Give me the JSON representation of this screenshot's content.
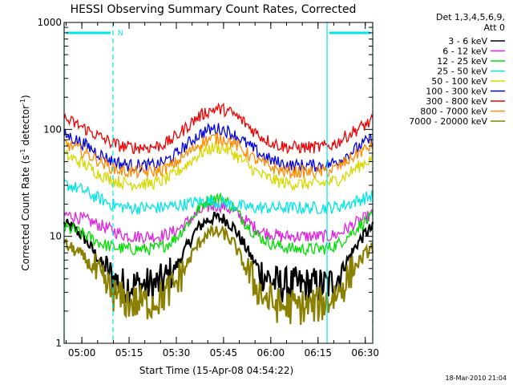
{
  "chart_data": {
    "type": "line",
    "title": "HESSI Observing Summary Count Rates, Corrected",
    "xlabel": "Start Time (15-Apr-08 04:54:22)",
    "ylabel_main": "Corrected Count Rate (s",
    "ylabel_exp1": "-1",
    "ylabel_mid": " detector",
    "ylabel_exp2": "-1",
    "ylabel_end": ")",
    "yscale": "log",
    "ylim": [
      1,
      1000
    ],
    "xlim_minutes": [
      0,
      98
    ],
    "x_tick_labels": [
      "05:00",
      "05:15",
      "05:30",
      "05:45",
      "06:00",
      "06:15",
      "06:30"
    ],
    "y_tick_labels": [
      "1",
      "10",
      "100",
      "1000"
    ],
    "legend_header": [
      "Det 1,3,4,5,6,9,",
      "Att 0"
    ],
    "markers": {
      "night_label": "N",
      "bars": [
        {
          "x1_min": 0,
          "x2_min": 15.5
        },
        {
          "x1_min": 83.5,
          "x2_min": 98
        }
      ],
      "vlines_dashed": [
        15.5,
        98
      ],
      "vlines_solid": [
        0,
        83.5
      ]
    },
    "x_minutes": [
      0,
      3,
      6,
      9,
      12,
      15,
      18,
      21,
      24,
      27,
      30,
      33,
      36,
      39,
      42,
      45,
      48,
      51,
      54,
      57,
      60,
      63,
      66,
      69,
      72,
      75,
      78,
      81,
      84,
      87,
      90,
      93,
      96,
      98
    ],
    "series": [
      {
        "name": "3 - 6 keV",
        "color": "#000000",
        "values": [
          13,
          12,
          10,
          7.5,
          5.5,
          4.2,
          3.5,
          3.5,
          3.5,
          3.5,
          3.6,
          4.2,
          5.5,
          8,
          11.5,
          14,
          15,
          14.5,
          12,
          8.5,
          6,
          4.5,
          3.8,
          3.5,
          3.5,
          3.5,
          3.5,
          3.5,
          3.5,
          4.2,
          6,
          8.5,
          11,
          12
        ]
      },
      {
        "name": "6 - 12 keV",
        "color": "#e020e0",
        "values": [
          16,
          15.5,
          14.5,
          13.5,
          12.5,
          11.5,
          10.5,
          10,
          10,
          10,
          10,
          10.5,
          11.5,
          13.5,
          16,
          18.5,
          19.5,
          19,
          17,
          14.5,
          12.5,
          11,
          10.5,
          10,
          10,
          10,
          10,
          10,
          10,
          10.5,
          12,
          13.5,
          15,
          16
        ]
      },
      {
        "name": "12 - 25 keV",
        "color": "#00dd00",
        "values": [
          12,
          11.5,
          10.5,
          9.5,
          8.5,
          8,
          7.7,
          7.6,
          7.6,
          7.6,
          7.8,
          8.5,
          10,
          13,
          17,
          21,
          23,
          22,
          18.5,
          14,
          11,
          9.5,
          8.5,
          8,
          7.7,
          7.6,
          7.6,
          7.6,
          7.8,
          8.5,
          10,
          12,
          14,
          15
        ]
      },
      {
        "name": "25 - 50 keV",
        "color": "#00e5e5",
        "values": [
          31,
          29,
          27,
          24,
          22,
          20,
          19,
          18.5,
          18.5,
          18.5,
          18.5,
          19,
          19.5,
          20,
          21,
          21.5,
          21,
          20.5,
          19.5,
          19,
          18.5,
          18.5,
          18.5,
          18.5,
          18.5,
          18.5,
          18.5,
          18.5,
          18.5,
          19,
          20,
          21.5,
          23,
          24
        ]
      },
      {
        "name": "50 - 100 keV",
        "color": "#d8d800",
        "values": [
          58,
          53,
          48,
          42,
          37,
          34,
          32,
          31,
          31,
          31,
          32,
          35,
          40,
          47,
          56,
          64,
          68,
          66,
          59,
          50,
          42,
          37,
          34,
          32,
          31,
          31,
          31,
          31,
          32,
          34,
          38,
          44,
          50,
          54
        ]
      },
      {
        "name": "100 - 300 keV",
        "color": "#0000dd",
        "values": [
          90,
          82,
          74,
          65,
          57,
          51,
          48,
          46,
          46,
          46,
          47,
          52,
          60,
          72,
          86,
          97,
          102,
          99,
          89,
          77,
          66,
          57,
          51,
          48,
          46,
          46,
          46,
          46,
          47,
          51,
          58,
          67,
          77,
          83
        ]
      },
      {
        "name": "300 - 800 keV",
        "color": "#ee0000",
        "values": [
          125,
          115,
          104,
          93,
          83,
          75,
          70,
          68,
          68,
          68,
          70,
          76,
          88,
          106,
          127,
          145,
          156,
          152,
          138,
          118,
          98,
          84,
          75,
          70,
          68,
          68,
          68,
          68,
          70,
          76,
          88,
          100,
          112,
          120
        ]
      },
      {
        "name": "800 - 7000 keV",
        "color": "#ff8c00",
        "values": [
          74,
          69,
          62,
          55,
          49,
          44,
          41,
          40,
          40,
          40,
          41,
          44,
          50,
          59,
          70,
          79,
          83,
          81,
          74,
          63,
          54,
          48,
          44,
          41,
          40,
          40,
          40,
          40,
          41,
          44,
          51,
          59,
          66,
          71
        ]
      },
      {
        "name": "7000 - 20000 keV",
        "color": "#8b8000",
        "values": [
          8.5,
          7.5,
          6.5,
          5,
          3.8,
          3,
          2.6,
          2.4,
          2.4,
          2.4,
          2.6,
          3,
          3.8,
          5.5,
          8,
          10.5,
          11,
          10.5,
          8.5,
          5.5,
          3.8,
          2.8,
          2.4,
          2.2,
          2.2,
          2.2,
          2.2,
          2.3,
          2.5,
          3,
          4,
          5.5,
          7,
          8
        ]
      }
    ]
  },
  "footer": {
    "timestamp": "18-Mar-2010 21:04"
  }
}
